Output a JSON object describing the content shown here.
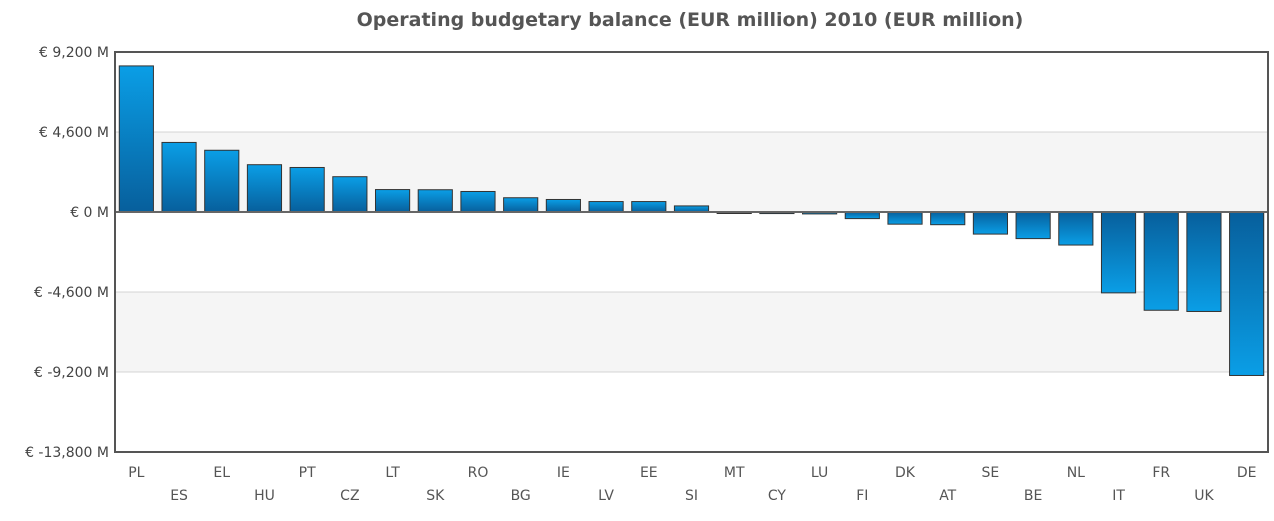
{
  "chart_data": {
    "type": "bar",
    "title": "Operating budgetary balance (EUR million) 2010 (EUR million)",
    "xlabel": "",
    "ylabel": "",
    "ylim": [
      -13800,
      9200
    ],
    "yticks": [
      9200,
      4600,
      0,
      -4600,
      -9200,
      -13800
    ],
    "ytick_labels": [
      "€ 9,200 M",
      "€ 4,600 M",
      "€ 0 M",
      "€ -4,600 M",
      "€ -9,200 M",
      "€ -13,800 M"
    ],
    "categories": [
      "PL",
      "ES",
      "EL",
      "HU",
      "PT",
      "CZ",
      "LT",
      "SK",
      "RO",
      "BG",
      "IE",
      "LV",
      "EE",
      "SI",
      "MT",
      "CY",
      "LU",
      "FI",
      "DK",
      "AT",
      "SE",
      "BE",
      "NL",
      "IT",
      "FR",
      "UK",
      "DE"
    ],
    "values": [
      8400,
      4000,
      3550,
      2720,
      2560,
      2030,
      1290,
      1280,
      1180,
      820,
      720,
      600,
      600,
      350,
      -80,
      -90,
      -110,
      -380,
      -700,
      -730,
      -1270,
      -1530,
      -1900,
      -4650,
      -5650,
      -5720,
      -9400
    ],
    "grid": true,
    "legend": "none",
    "colors": {
      "bar_top": "#0a9ee6",
      "bar_bottom": "#075f9c",
      "bar_edge": "#333333",
      "band": "#f5f5f5",
      "gridline": "#d4d4d4",
      "zero_line": "#666666",
      "frame": "#555555"
    }
  }
}
